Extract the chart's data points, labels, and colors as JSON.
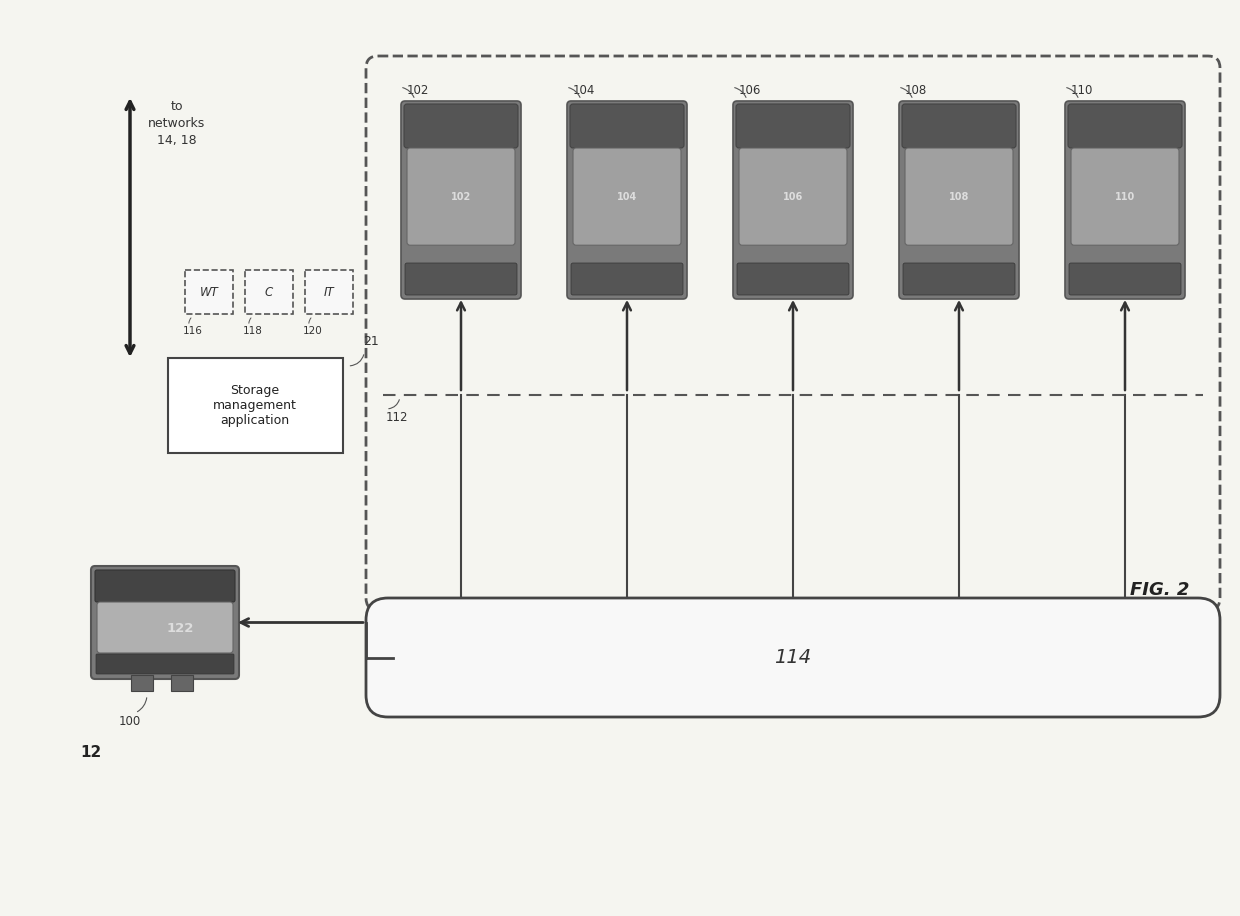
{
  "bg_color": "#f5f5f0",
  "fig_label": "FIG. 2",
  "node_label": "12",
  "host_label": "100",
  "host_id": "122",
  "sma_label": "Storage\nmanagement\napplication",
  "sma_id": "21",
  "net_label": "to\nnetworks\n14, 18",
  "small_boxes": [
    {
      "id": "116",
      "text": "WT"
    },
    {
      "id": "118",
      "text": "C"
    },
    {
      "id": "120",
      "text": "IT"
    }
  ],
  "bus_id": "114",
  "dashed_line_id": "112",
  "drive_ids": [
    "102",
    "104",
    "106",
    "108",
    "110"
  ]
}
